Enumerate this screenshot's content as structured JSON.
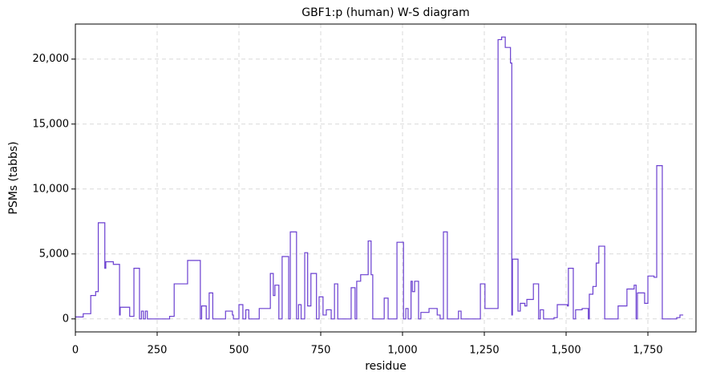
{
  "chart_data": {
    "type": "line",
    "title": "GBF1:p (human) W-S diagram",
    "x_label": "residue",
    "y_label": "PSMs (tabbs)",
    "drawstyle": "steps-post",
    "grid": true,
    "series": [
      {
        "color": "#6a3fd0",
        "x": [
          0,
          24,
          47,
          62,
          70,
          90,
          93,
          116,
          135,
          137,
          166,
          179,
          196,
          202,
          208,
          214,
          220,
          288,
          302,
          343,
          382,
          386,
          400,
          409,
          420,
          459,
          480,
          483,
          500,
          512,
          521,
          530,
          562,
          596,
          605,
          610,
          622,
          632,
          652,
          657,
          676,
          682,
          690,
          701,
          710,
          720,
          737,
          745,
          757,
          767,
          782,
          792,
          802,
          843,
          855,
          860,
          872,
          895,
          904,
          909,
          944,
          956,
          983,
          1003,
          1010,
          1017,
          1026,
          1030,
          1037,
          1049,
          1056,
          1081,
          1106,
          1115,
          1125,
          1137,
          1171,
          1179,
          1238,
          1252,
          1292,
          1303,
          1314,
          1330,
          1334,
          1336,
          1353,
          1360,
          1374,
          1380,
          1400,
          1416,
          1421,
          1431,
          1463,
          1473,
          1504,
          1507,
          1522,
          1529,
          1549,
          1568,
          1571,
          1582,
          1592,
          1600,
          1618,
          1659,
          1686,
          1708,
          1714,
          1718,
          1740,
          1750,
          1769,
          1777,
          1794,
          1838,
          1848,
          1858
        ],
        "values": [
          150,
          400,
          1800,
          2100,
          7400,
          3900,
          4400,
          4200,
          300,
          900,
          200,
          3900,
          0,
          600,
          0,
          600,
          0,
          200,
          2700,
          4500,
          0,
          1000,
          0,
          2000,
          0,
          600,
          300,
          0,
          1100,
          0,
          700,
          0,
          800,
          3500,
          1800,
          2600,
          0,
          4800,
          0,
          6700,
          0,
          1100,
          0,
          5100,
          1000,
          3500,
          0,
          1700,
          300,
          700,
          0,
          2700,
          0,
          2400,
          0,
          2900,
          3400,
          6000,
          3400,
          0,
          1600,
          0,
          5900,
          0,
          800,
          0,
          2900,
          2100,
          2900,
          0,
          500,
          800,
          300,
          0,
          6700,
          0,
          600,
          0,
          2700,
          800,
          21500,
          21700,
          20900,
          19700,
          300,
          4600,
          600,
          1200,
          1000,
          1500,
          2700,
          0,
          700,
          0,
          100,
          1100,
          1000,
          3900,
          0,
          700,
          800,
          0,
          1900,
          2500,
          4300,
          5600,
          0,
          1000,
          2300,
          2600,
          0,
          2000,
          1200,
          3300,
          3200,
          11800,
          0,
          100,
          300,
          300
        ]
      }
    ],
    "xlim": [
      0,
      1897
    ],
    "xticks": [
      0,
      250,
      500,
      750,
      {
        "value": 1000,
        "label": "1,000"
      },
      {
        "value": 1250,
        "label": "1,250"
      },
      {
        "value": 1500,
        "label": "1,500"
      },
      {
        "value": 1750,
        "label": "1,750"
      }
    ],
    "ylim": [
      -1000,
      22700
    ],
    "yticks": [
      0,
      {
        "value": 5000,
        "label": "5,000"
      },
      {
        "value": 10000,
        "label": "10,000"
      },
      {
        "value": 15000,
        "label": "15,000"
      },
      {
        "value": 20000,
        "label": "20,000"
      }
    ]
  }
}
